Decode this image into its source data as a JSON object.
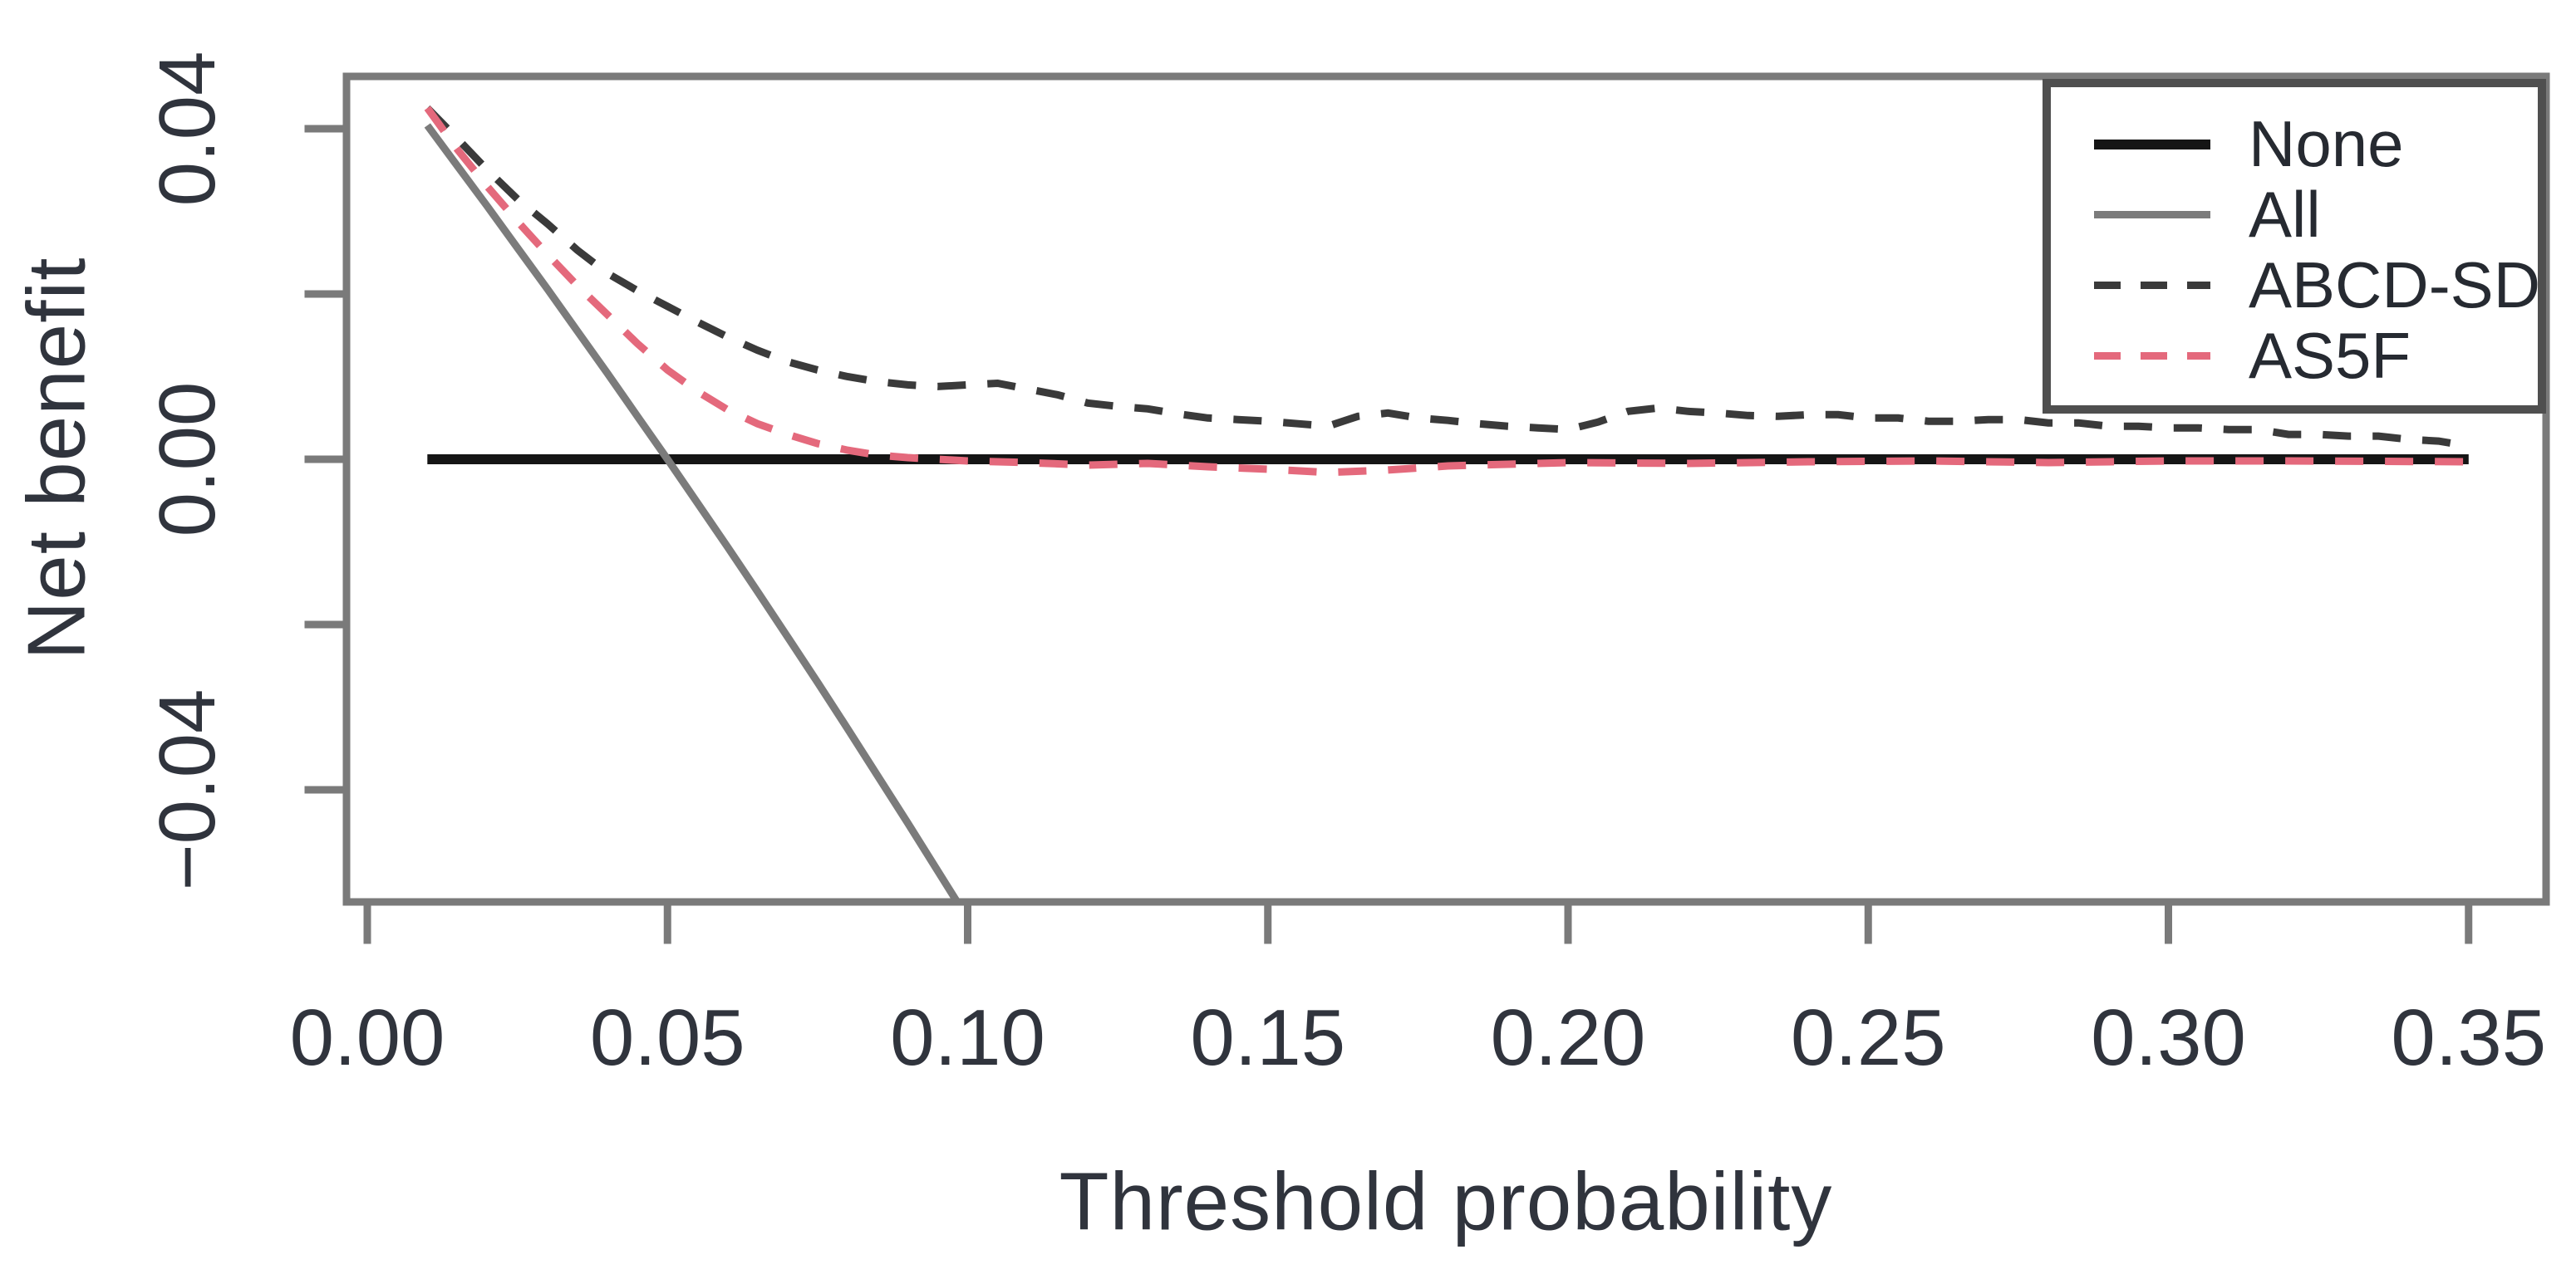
{
  "figure": {
    "background": "#ffffff",
    "text_color": "#30343d",
    "axis_color": "#7a7a7a"
  },
  "chart_data": {
    "type": "line",
    "title": "",
    "xlabel": "Threshold probability",
    "ylabel": "Net benefit",
    "xlim": [
      -0.004,
      0.363
    ],
    "ylim": [
      -0.0531,
      0.0464
    ],
    "grid": false,
    "x_ticks": [
      {
        "value": 0.0,
        "label": "0.00"
      },
      {
        "value": 0.05,
        "label": "0.05"
      },
      {
        "value": 0.1,
        "label": "0.10"
      },
      {
        "value": 0.15,
        "label": "0.15"
      },
      {
        "value": 0.2,
        "label": "0.20"
      },
      {
        "value": 0.25,
        "label": "0.25"
      },
      {
        "value": 0.3,
        "label": "0.30"
      },
      {
        "value": 0.35,
        "label": "0.35"
      }
    ],
    "y_ticks": [
      {
        "value": 0.04,
        "label": "0.04"
      },
      {
        "value": 0.02,
        "label": ""
      },
      {
        "value": 0.0,
        "label": "0.00"
      },
      {
        "value": -0.02,
        "label": ""
      },
      {
        "value": -0.04,
        "label": "−0.04"
      }
    ],
    "legend": {
      "position": "top-right",
      "entries": [
        {
          "name": "None",
          "color": "#151515",
          "style": "solid",
          "line_width": 12
        },
        {
          "name": "All",
          "color": "#7b7b7b",
          "style": "solid",
          "line_width": 9
        },
        {
          "name": "ABCD-SD",
          "color": "#3a3a3a",
          "style": "dashed",
          "line_width": 9
        },
        {
          "name": "AS5F",
          "color": "#e4697c",
          "style": "dashed",
          "line_width": 9
        }
      ]
    },
    "series": [
      {
        "name": "None",
        "color": "#151515",
        "style": "solid",
        "width": 12,
        "points": [
          [
            0.01,
            0.0
          ],
          [
            0.35,
            0.0
          ]
        ]
      },
      {
        "name": "All",
        "color": "#7b7b7b",
        "style": "solid",
        "width": 9,
        "points": [
          [
            0.01,
            0.0404
          ],
          [
            0.015,
            0.0355
          ],
          [
            0.02,
            0.0306
          ],
          [
            0.025,
            0.0256
          ],
          [
            0.03,
            0.0206
          ],
          [
            0.035,
            0.0155
          ],
          [
            0.04,
            0.0104
          ],
          [
            0.045,
            0.0052
          ],
          [
            0.05,
            0.0
          ],
          [
            0.055,
            -0.0053
          ],
          [
            0.06,
            -0.0106
          ],
          [
            0.065,
            -0.016
          ],
          [
            0.07,
            -0.0215
          ],
          [
            0.075,
            -0.027
          ],
          [
            0.08,
            -0.0326
          ],
          [
            0.085,
            -0.0383
          ],
          [
            0.09,
            -0.044
          ],
          [
            0.095,
            -0.0498
          ],
          [
            0.1,
            -0.0556
          ],
          [
            0.104,
            -0.0603
          ]
        ]
      },
      {
        "name": "ABCD-SD",
        "color": "#3a3a3a",
        "style": "dashed",
        "width": 9,
        "points": [
          [
            0.01,
            0.0425
          ],
          [
            0.015,
            0.0388
          ],
          [
            0.02,
            0.035
          ],
          [
            0.025,
            0.0315
          ],
          [
            0.03,
            0.0285
          ],
          [
            0.035,
            0.0253
          ],
          [
            0.04,
            0.0225
          ],
          [
            0.045,
            0.0204
          ],
          [
            0.05,
            0.0185
          ],
          [
            0.055,
            0.0166
          ],
          [
            0.06,
            0.0148
          ],
          [
            0.065,
            0.0132
          ],
          [
            0.07,
            0.0118
          ],
          [
            0.075,
            0.0108
          ],
          [
            0.08,
            0.01
          ],
          [
            0.085,
            0.0094
          ],
          [
            0.09,
            0.009
          ],
          [
            0.095,
            0.0088
          ],
          [
            0.1,
            0.009
          ],
          [
            0.105,
            0.0092
          ],
          [
            0.11,
            0.0085
          ],
          [
            0.115,
            0.0078
          ],
          [
            0.12,
            0.0068
          ],
          [
            0.125,
            0.0064
          ],
          [
            0.13,
            0.0061
          ],
          [
            0.135,
            0.0055
          ],
          [
            0.14,
            0.005
          ],
          [
            0.145,
            0.0048
          ],
          [
            0.15,
            0.0046
          ],
          [
            0.155,
            0.0043
          ],
          [
            0.16,
            0.004
          ],
          [
            0.165,
            0.0052
          ],
          [
            0.17,
            0.0056
          ],
          [
            0.175,
            0.005
          ],
          [
            0.18,
            0.0047
          ],
          [
            0.185,
            0.0043
          ],
          [
            0.19,
            0.004
          ],
          [
            0.195,
            0.0038
          ],
          [
            0.2,
            0.0036
          ],
          [
            0.205,
            0.0045
          ],
          [
            0.21,
            0.0058
          ],
          [
            0.215,
            0.0062
          ],
          [
            0.22,
            0.0058
          ],
          [
            0.225,
            0.0056
          ],
          [
            0.23,
            0.0053
          ],
          [
            0.235,
            0.0052
          ],
          [
            0.24,
            0.0054
          ],
          [
            0.245,
            0.0054
          ],
          [
            0.25,
            0.005
          ],
          [
            0.255,
            0.005
          ],
          [
            0.26,
            0.0046
          ],
          [
            0.265,
            0.0046
          ],
          [
            0.27,
            0.0048
          ],
          [
            0.275,
            0.0048
          ],
          [
            0.28,
            0.0044
          ],
          [
            0.285,
            0.0044
          ],
          [
            0.29,
            0.004
          ],
          [
            0.295,
            0.004
          ],
          [
            0.3,
            0.0038
          ],
          [
            0.305,
            0.0038
          ],
          [
            0.31,
            0.0036
          ],
          [
            0.315,
            0.0036
          ],
          [
            0.32,
            0.003
          ],
          [
            0.325,
            0.003
          ],
          [
            0.33,
            0.0028
          ],
          [
            0.335,
            0.0028
          ],
          [
            0.34,
            0.0024
          ],
          [
            0.345,
            0.0022
          ],
          [
            0.35,
            0.0016
          ]
        ]
      },
      {
        "name": "AS5F",
        "color": "#e4697c",
        "style": "dashed",
        "width": 9,
        "points": [
          [
            0.01,
            0.0425
          ],
          [
            0.015,
            0.0375
          ],
          [
            0.02,
            0.033
          ],
          [
            0.025,
            0.0288
          ],
          [
            0.03,
            0.0248
          ],
          [
            0.035,
            0.021
          ],
          [
            0.04,
            0.0175
          ],
          [
            0.045,
            0.014
          ],
          [
            0.05,
            0.0108
          ],
          [
            0.055,
            0.0082
          ],
          [
            0.06,
            0.006
          ],
          [
            0.065,
            0.0043
          ],
          [
            0.07,
            0.003
          ],
          [
            0.075,
            0.0019
          ],
          [
            0.08,
            0.0011
          ],
          [
            0.085,
            0.0005
          ],
          [
            0.09,
            0.0002
          ],
          [
            0.095,
            0.0
          ],
          [
            0.1,
            -0.0002
          ],
          [
            0.11,
            -0.0004
          ],
          [
            0.12,
            -0.0007
          ],
          [
            0.13,
            -0.0005
          ],
          [
            0.14,
            -0.0009
          ],
          [
            0.15,
            -0.0012
          ],
          [
            0.16,
            -0.0016
          ],
          [
            0.17,
            -0.0013
          ],
          [
            0.18,
            -0.0008
          ],
          [
            0.19,
            -0.0006
          ],
          [
            0.2,
            -0.0004
          ],
          [
            0.22,
            -0.0005
          ],
          [
            0.24,
            -0.0003
          ],
          [
            0.26,
            -0.0002
          ],
          [
            0.28,
            -0.0004
          ],
          [
            0.3,
            -0.0002
          ],
          [
            0.32,
            -0.0002
          ],
          [
            0.35,
            -0.0003
          ]
        ]
      }
    ]
  }
}
